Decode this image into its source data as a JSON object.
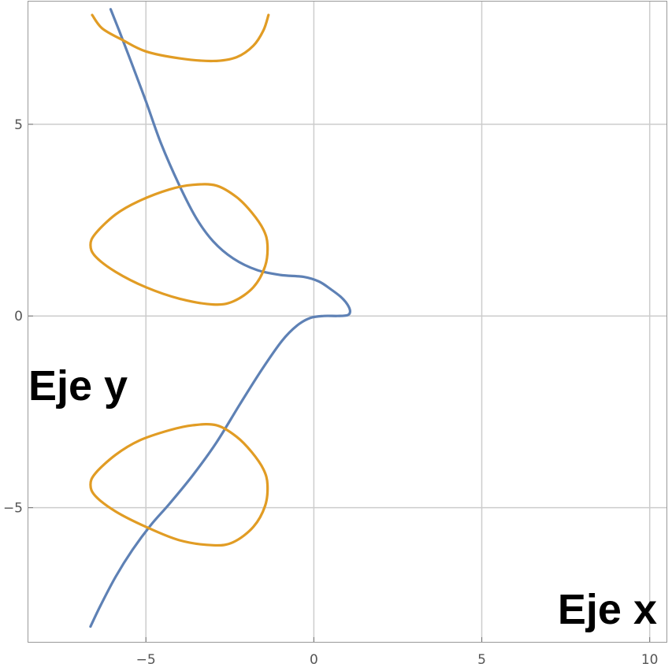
{
  "chart_data": {
    "type": "line",
    "title": "",
    "xlabel": "Eje x",
    "ylabel": "Eje y",
    "xlim": [
      -8.5,
      10.5
    ],
    "ylim": [
      -8.5,
      8.2
    ],
    "grid": true,
    "xticks": [
      -5,
      0,
      5,
      10
    ],
    "xtick_labels": [
      "−5",
      "0",
      "5",
      "10"
    ],
    "yticks": [
      -5,
      0,
      5
    ],
    "ytick_labels": [
      "−5",
      "0",
      "5"
    ],
    "colors": {
      "blue": "#5E81B5",
      "orange": "#E19C24",
      "grid": "#CCCCCC",
      "frame": "#999999"
    },
    "series": [
      {
        "color": "blue",
        "points": [
          [
            -6.05,
            8.0
          ],
          [
            -5.8,
            7.45
          ],
          [
            -5.45,
            6.65
          ],
          [
            -5.0,
            5.6
          ],
          [
            -4.55,
            4.5
          ],
          [
            -4.0,
            3.4
          ],
          [
            -3.5,
            2.55
          ],
          [
            -3.0,
            1.95
          ],
          [
            -2.4,
            1.5
          ],
          [
            -1.7,
            1.2
          ],
          [
            -1.0,
            1.07
          ],
          [
            -0.3,
            1.02
          ],
          [
            0.15,
            0.9
          ],
          [
            0.5,
            0.7
          ],
          [
            0.8,
            0.5
          ],
          [
            1.0,
            0.3
          ],
          [
            1.08,
            0.12
          ],
          [
            1.0,
            0.02
          ],
          [
            0.7,
            0.0
          ],
          [
            0.3,
            0.0
          ],
          [
            -0.1,
            -0.05
          ],
          [
            -0.5,
            -0.25
          ],
          [
            -0.95,
            -0.65
          ],
          [
            -1.55,
            -1.4
          ],
          [
            -2.2,
            -2.3
          ],
          [
            -2.9,
            -3.3
          ],
          [
            -3.6,
            -4.15
          ],
          [
            -4.3,
            -4.9
          ],
          [
            -4.85,
            -5.45
          ],
          [
            -5.4,
            -6.1
          ],
          [
            -5.9,
            -6.8
          ],
          [
            -6.35,
            -7.55
          ],
          [
            -6.65,
            -8.1
          ]
        ]
      },
      {
        "color": "orange",
        "points": [
          [
            -6.6,
            7.85
          ],
          [
            -6.3,
            7.5
          ],
          [
            -5.7,
            7.2
          ],
          [
            -5.0,
            6.9
          ],
          [
            -4.0,
            6.72
          ],
          [
            -3.0,
            6.65
          ],
          [
            -2.3,
            6.75
          ],
          [
            -1.8,
            7.05
          ],
          [
            -1.5,
            7.45
          ],
          [
            -1.35,
            7.85
          ]
        ]
      },
      {
        "color": "orange",
        "closed": true,
        "points": [
          [
            -6.65,
            1.85
          ],
          [
            -6.5,
            2.15
          ],
          [
            -5.9,
            2.65
          ],
          [
            -5.2,
            3.0
          ],
          [
            -4.3,
            3.3
          ],
          [
            -3.6,
            3.42
          ],
          [
            -2.9,
            3.4
          ],
          [
            -2.3,
            3.1
          ],
          [
            -1.85,
            2.7
          ],
          [
            -1.5,
            2.25
          ],
          [
            -1.38,
            1.85
          ],
          [
            -1.45,
            1.3
          ],
          [
            -1.8,
            0.75
          ],
          [
            -2.4,
            0.38
          ],
          [
            -3.0,
            0.3
          ],
          [
            -4.0,
            0.45
          ],
          [
            -5.0,
            0.75
          ],
          [
            -5.9,
            1.15
          ],
          [
            -6.5,
            1.55
          ]
        ]
      },
      {
        "color": "orange",
        "closed": true,
        "points": [
          [
            -6.65,
            -4.4
          ],
          [
            -6.5,
            -4.1
          ],
          [
            -5.9,
            -3.62
          ],
          [
            -5.2,
            -3.25
          ],
          [
            -4.3,
            -2.98
          ],
          [
            -3.6,
            -2.85
          ],
          [
            -2.9,
            -2.85
          ],
          [
            -2.3,
            -3.15
          ],
          [
            -1.85,
            -3.55
          ],
          [
            -1.5,
            -4.0
          ],
          [
            -1.38,
            -4.4
          ],
          [
            -1.45,
            -4.95
          ],
          [
            -1.8,
            -5.5
          ],
          [
            -2.4,
            -5.9
          ],
          [
            -3.0,
            -5.98
          ],
          [
            -4.0,
            -5.85
          ],
          [
            -5.0,
            -5.5
          ],
          [
            -5.9,
            -5.1
          ],
          [
            -6.5,
            -4.7
          ]
        ]
      }
    ]
  }
}
